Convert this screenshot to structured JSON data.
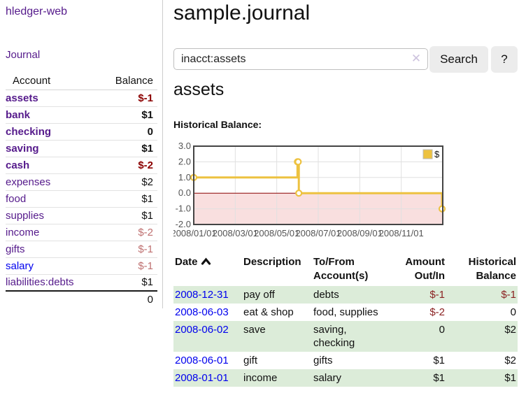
{
  "colors": {
    "link_purple": "#551a8b",
    "link_blue": "#0000ee",
    "negative_strong": "#8b0000",
    "negative_dim": "#bf7070",
    "negative_table": "#8b2222",
    "row_stripe_green": "#dcecd9",
    "series_yellow": "#edc240",
    "zero_line_red": "#8b0000",
    "negative_region_pink": "#f9dfdf",
    "chart_border_gray": "#444444",
    "tick_label_gray": "#545454"
  },
  "sidebar": {
    "brand": "hledger-web",
    "journal_link": "Journal",
    "accounts_header": {
      "account": "Account",
      "balance": "Balance"
    },
    "accounts": [
      {
        "name": "assets",
        "depth": 1,
        "balance": "$-1",
        "bold": true,
        "negative": "strong"
      },
      {
        "name": "bank",
        "depth": 2,
        "balance": "$1",
        "bold": true
      },
      {
        "name": "checking",
        "depth": 3,
        "balance": "0",
        "bold": true
      },
      {
        "name": "saving",
        "depth": 3,
        "balance": "$1",
        "bold": true
      },
      {
        "name": "cash",
        "depth": 2,
        "balance": "$-2",
        "bold": true,
        "negative": "strong"
      },
      {
        "name": "expenses",
        "depth": 1,
        "balance": "$2"
      },
      {
        "name": "food",
        "depth": 2,
        "balance": "$1"
      },
      {
        "name": "supplies",
        "depth": 2,
        "balance": "$1"
      },
      {
        "name": "income",
        "depth": 1,
        "balance": "$-2",
        "negative": "dim"
      },
      {
        "name": "gifts",
        "depth": 2,
        "balance": "$-1",
        "negative": "dim"
      },
      {
        "name": "salary",
        "depth": 2,
        "balance": "$-1",
        "negative": "dim",
        "link_color": "blue"
      },
      {
        "name": "liabilities:debts",
        "depth": 1,
        "balance": "$1"
      }
    ],
    "total": "0"
  },
  "main": {
    "title": "sample.journal",
    "search": {
      "value": "inacct:assets",
      "clear_icon": "x-clear-icon",
      "clear_glyph": "✕",
      "button_label": "Search",
      "help_label": "?"
    },
    "account_title": "assets",
    "section_label": "Historical Balance:"
  },
  "chart_data": {
    "type": "line",
    "style": "steps-post",
    "title": "Historical Balance of assets",
    "series": [
      {
        "name": "$",
        "color": "#edc240",
        "points": [
          [
            "2008-01-01",
            1
          ],
          [
            "2008-06-01",
            2
          ],
          [
            "2008-06-02",
            2
          ],
          [
            "2008-06-03",
            0
          ],
          [
            "2008-12-31",
            -1
          ]
        ]
      }
    ],
    "xlim": [
      "2008-01-01",
      "2009-01-01"
    ],
    "ylim": [
      -2,
      3
    ],
    "yticks": [
      "3.0",
      "2.0",
      "1.0",
      "0.0",
      "-1.0",
      "-2.0"
    ],
    "xticks": [
      "2008/01/01",
      "2008/03/01",
      "2008/05/01",
      "2008/07/01",
      "2008/09/01",
      "2008/11/01"
    ],
    "legend": {
      "label": "$",
      "position": "top-right"
    },
    "grid": true,
    "negative_region_shaded": true,
    "zero_line": "#8b0000",
    "negative_fill": "#f9dfdf"
  },
  "register": {
    "headers": {
      "date": "Date",
      "sort_icon": "chevron-up",
      "description": "Description",
      "tofrom_line1": "To/From",
      "tofrom_line2": "Account(s)",
      "amount_line1": "Amount",
      "amount_line2": "Out/In",
      "hist_line1": "Historical",
      "hist_line2": "Balance"
    },
    "rows": [
      {
        "date": "2008-12-31",
        "description": "pay off",
        "accounts": "debts",
        "amount": "$-1",
        "balance": "$-1"
      },
      {
        "date": "2008-06-03",
        "description": "eat & shop",
        "accounts": "food, supplies",
        "amount": "$-2",
        "balance": "0"
      },
      {
        "date": "2008-06-02",
        "description": "save",
        "accounts": "saving, checking",
        "amount": "0",
        "balance": "$2"
      },
      {
        "date": "2008-06-01",
        "description": "gift",
        "accounts": "gifts",
        "amount": "$1",
        "balance": "$2"
      },
      {
        "date": "2008-01-01",
        "description": "income",
        "accounts": "salary",
        "amount": "$1",
        "balance": "$1"
      }
    ]
  }
}
